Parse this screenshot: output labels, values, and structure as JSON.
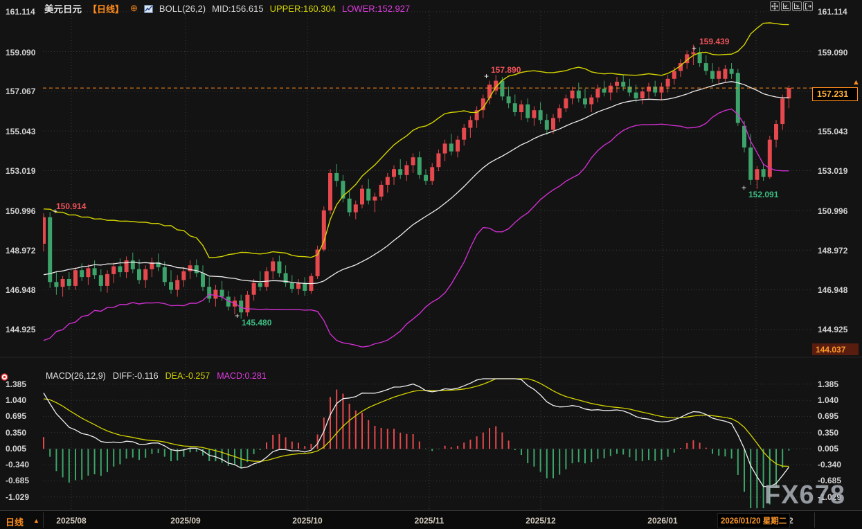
{
  "header": {
    "symbol": "美元日元",
    "period_tag": "【日线】",
    "add_icon_glyph": "⊕",
    "boll_label": "BOLL(26,2)",
    "boll_mid": "MID:156.615",
    "boll_upper": "UPPER:160.304",
    "boll_lower": "LOWER:152.927"
  },
  "macd_header": {
    "label": "MACD(26,12,9)",
    "diff": "DIFF:-0.116",
    "dea": "DEA:-0.257",
    "macd": "MACD:0.281"
  },
  "price_axis_labels": [
    "161.114",
    "159.090",
    "157.067",
    "155.043",
    "153.019",
    "150.996",
    "148.972",
    "146.948",
    "144.925"
  ],
  "macd_axis_labels": [
    "1.385",
    "1.040",
    "0.695",
    "0.350",
    "0.005",
    "-0.340",
    "-0.685",
    "-1.029"
  ],
  "badges": {
    "current_price": "157.231",
    "pane_low": "144.037",
    "arrow_up": "▲"
  },
  "annotations": {
    "marker_glyph": "+",
    "first_high": "150.914",
    "trend_high": "157.890",
    "peak_high": "159.439",
    "sep_low": "145.480",
    "jan_low": "152.091"
  },
  "bottom": {
    "period": "日线",
    "arrow_up": "▲",
    "dates": [
      "2025/08",
      "2025/09",
      "2025/10",
      "2025/11",
      "2025/12",
      "2026/01"
    ],
    "current_date": "2026/01/20 星期二",
    "next_partial": "2"
  },
  "watermark": "FX678",
  "chart_data": {
    "type": "candlestick",
    "title": "美元日元 日线 (USD/JPY Daily) with BOLL(26,2) and MACD(26,12,9)",
    "price_axis": {
      "ticks": [
        161.114,
        159.09,
        157.067,
        155.043,
        153.019,
        150.996,
        148.972,
        146.948,
        144.925
      ]
    },
    "macd_axis": {
      "ticks": [
        1.385,
        1.04,
        0.695,
        0.35,
        0.005,
        -0.34,
        -0.685,
        -1.029
      ]
    },
    "x_axis": {
      "labels": [
        "2025/08",
        "2025/09",
        "2025/10",
        "2025/11",
        "2025/12",
        "2026/01"
      ],
      "current": "2026/01/20 星期二"
    },
    "indicators": {
      "boll": {
        "period": 26,
        "dev": 2,
        "mid": 156.615,
        "upper": 160.304,
        "lower": 152.927
      },
      "macd": {
        "slow": 26,
        "fast": 12,
        "signal": 9,
        "diff": -0.116,
        "dea": -0.257,
        "macd": 0.281
      }
    },
    "current_price": 157.231,
    "pane_low_marker": 144.037,
    "extremes": {
      "first_high": 150.914,
      "trend_high": 157.89,
      "peak_high": 159.439,
      "sep_low": 145.48,
      "jan_low": 152.091
    },
    "colors": {
      "up": "#e5484d",
      "down": "#3ca46a",
      "boll_upper": "#d4d400",
      "boll_mid": "#ececec",
      "boll_lower": "#d02fd0",
      "diff_line": "#f0f0f0",
      "dea_line": "#d4d400",
      "hist_pos": "#e5484d",
      "hist_neg": "#3ca46a",
      "accent": "#ff8c1a",
      "grid": "#3a3a3a"
    },
    "candles": [
      [
        149.3,
        150.85,
        148.9,
        150.65
      ],
      [
        150.65,
        150.914,
        147.05,
        147.35
      ],
      [
        147.35,
        147.9,
        146.7,
        147.1
      ],
      [
        147.1,
        147.65,
        146.6,
        147.5
      ],
      [
        147.5,
        147.85,
        146.95,
        147.15
      ],
      [
        147.15,
        148.1,
        146.95,
        147.95
      ],
      [
        147.95,
        148.3,
        147.4,
        147.6
      ],
      [
        147.6,
        148.25,
        147.2,
        148.05
      ],
      [
        148.05,
        148.45,
        147.5,
        147.7
      ],
      [
        147.7,
        148.0,
        146.85,
        147.15
      ],
      [
        147.15,
        147.95,
        146.8,
        147.75
      ],
      [
        147.75,
        148.35,
        147.3,
        148.15
      ],
      [
        148.15,
        148.55,
        147.6,
        147.85
      ],
      [
        147.85,
        148.65,
        147.55,
        148.45
      ],
      [
        148.45,
        148.85,
        147.8,
        148.0
      ],
      [
        148.0,
        148.5,
        147.25,
        147.45
      ],
      [
        147.45,
        148.2,
        147.05,
        148.0
      ],
      [
        148.0,
        148.6,
        147.6,
        148.35
      ],
      [
        148.35,
        148.8,
        147.9,
        148.1
      ],
      [
        148.1,
        148.4,
        147.15,
        147.35
      ],
      [
        147.35,
        147.95,
        146.75,
        146.95
      ],
      [
        146.95,
        147.7,
        146.6,
        147.45
      ],
      [
        147.45,
        148.1,
        147.1,
        147.9
      ],
      [
        147.9,
        148.45,
        147.5,
        148.2
      ],
      [
        148.2,
        148.5,
        147.6,
        147.8
      ],
      [
        147.8,
        148.2,
        146.9,
        147.1
      ],
      [
        147.1,
        147.6,
        146.3,
        146.5
      ],
      [
        146.5,
        147.2,
        146.1,
        146.95
      ],
      [
        146.95,
        147.4,
        146.4,
        146.6
      ],
      [
        146.6,
        146.9,
        145.9,
        146.1
      ],
      [
        146.1,
        146.6,
        145.7,
        146.4
      ],
      [
        146.4,
        146.7,
        145.48,
        145.8
      ],
      [
        145.8,
        146.9,
        145.6,
        146.7
      ],
      [
        146.7,
        147.5,
        146.4,
        147.3
      ],
      [
        147.3,
        147.9,
        146.9,
        147.1
      ],
      [
        147.1,
        148.1,
        146.9,
        147.9
      ],
      [
        147.9,
        148.6,
        147.5,
        148.4
      ],
      [
        148.4,
        148.7,
        147.6,
        147.8
      ],
      [
        147.8,
        148.2,
        147.1,
        147.3
      ],
      [
        147.3,
        147.7,
        146.8,
        147.0
      ],
      [
        147.0,
        147.5,
        146.7,
        147.3
      ],
      [
        147.3,
        147.6,
        146.65,
        146.9
      ],
      [
        146.9,
        147.8,
        146.75,
        147.65
      ],
      [
        147.65,
        149.2,
        147.5,
        149.0
      ],
      [
        149.0,
        151.2,
        148.9,
        151.0
      ],
      [
        151.0,
        153.1,
        150.8,
        152.9
      ],
      [
        152.9,
        153.35,
        152.2,
        152.5
      ],
      [
        152.5,
        152.8,
        151.4,
        151.6
      ],
      [
        151.6,
        152.0,
        150.7,
        150.9
      ],
      [
        150.9,
        151.5,
        150.55,
        151.3
      ],
      [
        151.3,
        152.3,
        151.1,
        152.1
      ],
      [
        152.1,
        152.6,
        151.3,
        151.5
      ],
      [
        151.5,
        151.9,
        150.9,
        151.7
      ],
      [
        151.7,
        152.5,
        151.5,
        152.3
      ],
      [
        152.3,
        152.9,
        151.9,
        152.7
      ],
      [
        152.7,
        153.3,
        152.3,
        153.1
      ],
      [
        153.1,
        153.6,
        152.6,
        152.8
      ],
      [
        152.8,
        153.5,
        152.5,
        153.3
      ],
      [
        153.3,
        153.9,
        152.9,
        153.7
      ],
      [
        153.7,
        154.0,
        152.6,
        152.8
      ],
      [
        152.8,
        153.1,
        152.3,
        152.5
      ],
      [
        152.5,
        153.4,
        152.3,
        153.2
      ],
      [
        153.2,
        154.1,
        153.0,
        153.9
      ],
      [
        153.9,
        154.6,
        153.5,
        154.4
      ],
      [
        154.4,
        154.9,
        153.8,
        154.0
      ],
      [
        154.0,
        154.8,
        153.7,
        154.6
      ],
      [
        154.6,
        155.4,
        154.3,
        155.2
      ],
      [
        155.2,
        155.8,
        154.7,
        155.6
      ],
      [
        155.6,
        156.3,
        155.2,
        156.1
      ],
      [
        156.1,
        156.9,
        155.7,
        156.7
      ],
      [
        156.7,
        157.6,
        156.4,
        157.4
      ],
      [
        157.1,
        157.89,
        156.9,
        157.6
      ],
      [
        157.6,
        157.8,
        156.6,
        156.8
      ],
      [
        156.8,
        157.3,
        156.2,
        156.45
      ],
      [
        156.45,
        156.9,
        155.8,
        156.0
      ],
      [
        156.0,
        156.6,
        155.6,
        156.4
      ],
      [
        156.4,
        156.7,
        155.5,
        155.7
      ],
      [
        155.7,
        156.3,
        155.3,
        156.1
      ],
      [
        156.1,
        156.5,
        155.4,
        155.6
      ],
      [
        155.6,
        155.9,
        154.85,
        155.1
      ],
      [
        155.1,
        155.9,
        154.9,
        155.7
      ],
      [
        155.7,
        156.4,
        155.5,
        156.2
      ],
      [
        156.2,
        156.9,
        156.0,
        156.7
      ],
      [
        156.7,
        157.3,
        156.4,
        157.1
      ],
      [
        157.1,
        157.5,
        156.5,
        156.7
      ],
      [
        156.7,
        157.2,
        156.2,
        156.4
      ],
      [
        156.4,
        156.9,
        156.0,
        156.75
      ],
      [
        156.75,
        157.4,
        156.5,
        157.2
      ],
      [
        157.2,
        157.6,
        156.8,
        157.0
      ],
      [
        157.0,
        157.5,
        156.6,
        157.35
      ],
      [
        157.35,
        157.8,
        157.0,
        157.55
      ],
      [
        157.55,
        157.9,
        157.1,
        157.3
      ],
      [
        157.3,
        157.7,
        156.8,
        157.0
      ],
      [
        157.0,
        157.4,
        156.5,
        156.7
      ],
      [
        156.7,
        157.2,
        156.4,
        157.05
      ],
      [
        157.05,
        157.5,
        156.7,
        157.3
      ],
      [
        157.3,
        157.6,
        156.8,
        157.0
      ],
      [
        157.0,
        157.5,
        156.6,
        157.3
      ],
      [
        157.3,
        157.9,
        157.0,
        157.7
      ],
      [
        157.7,
        158.3,
        157.4,
        158.1
      ],
      [
        158.1,
        158.7,
        157.8,
        158.5
      ],
      [
        158.5,
        159.15,
        158.2,
        158.95
      ],
      [
        158.95,
        159.439,
        158.4,
        159.05
      ],
      [
        159.05,
        159.3,
        158.3,
        158.5
      ],
      [
        158.5,
        158.9,
        157.9,
        158.1
      ],
      [
        158.1,
        158.5,
        157.5,
        157.7
      ],
      [
        157.7,
        158.3,
        157.4,
        158.1
      ],
      [
        157.7,
        158.4,
        157.5,
        158.2
      ],
      [
        158.2,
        158.5,
        157.7,
        157.95
      ],
      [
        158.0,
        158.2,
        155.3,
        155.45
      ],
      [
        155.3,
        155.55,
        153.95,
        154.2
      ],
      [
        154.2,
        154.9,
        152.3,
        152.55
      ],
      [
        152.55,
        153.25,
        152.091,
        153.1
      ],
      [
        153.1,
        153.4,
        152.5,
        152.7
      ],
      [
        152.7,
        154.8,
        152.6,
        154.6
      ],
      [
        154.6,
        155.6,
        154.2,
        155.4
      ],
      [
        155.4,
        156.9,
        155.1,
        156.7
      ],
      [
        156.7,
        157.35,
        156.2,
        157.231
      ]
    ]
  }
}
